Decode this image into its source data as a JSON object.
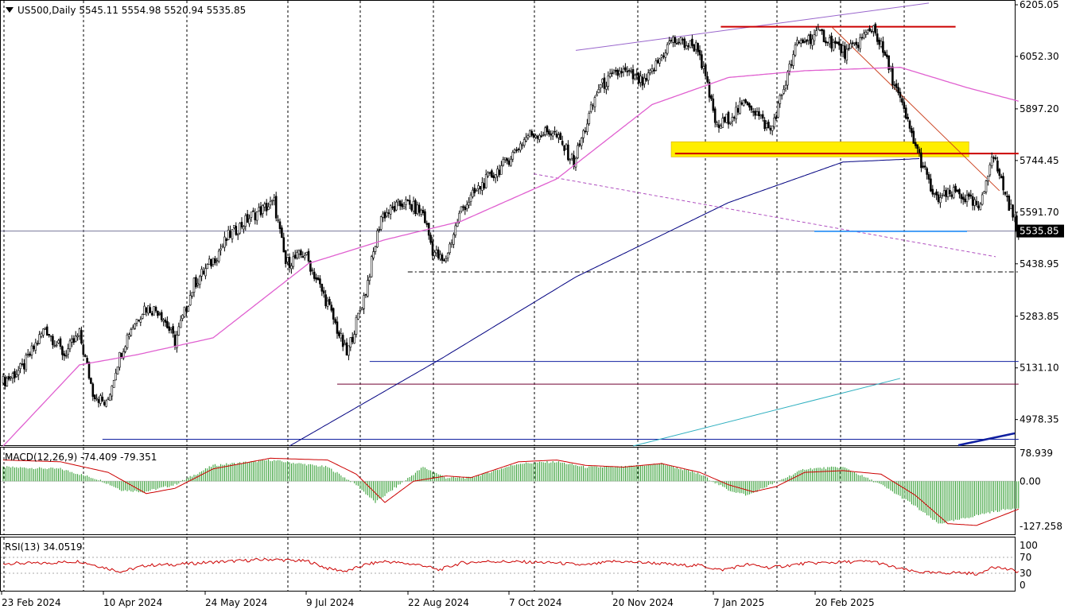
{
  "header": {
    "symbol": "US500,Daily",
    "ohlc": "5545.11 5554.98 5520.94 5535.85"
  },
  "colors": {
    "up_candle": "#000000",
    "down_candle": "#000000",
    "ma50": "#e060d0",
    "ma200": "#000080",
    "macd_hist": "#2a9a2a",
    "macd_signal": "#cc0000",
    "rsi_line": "#cc0000",
    "support_zone": "#ffee00",
    "resistance_line": "#cc0000",
    "channel_line": "#9966cc",
    "support_line": "#1e90ff"
  },
  "chart_data": [
    {
      "type": "candlestick",
      "title": "US500,Daily",
      "ylim": [
        4900,
        6205.05
      ],
      "y_ticks": [
        "6205.05",
        "6052.30",
        "5897.20",
        "5744.45",
        "5591.70",
        "5438.95",
        "5283.85",
        "5131.10",
        "4978.35"
      ],
      "current_price": "5535.85",
      "x_ticks": [
        "23 Feb 2024",
        "10 Apr 2024",
        "24 May 2024",
        "9 Jul 2024",
        "22 Aug 2024",
        "7 Oct 2024",
        "20 Nov 2024",
        "7 Jan 2025",
        "20 Feb 2025"
      ],
      "close_anchors": [
        [
          0,
          5090
        ],
        [
          10,
          5130
        ],
        [
          22,
          5250
        ],
        [
          32,
          5170
        ],
        [
          40,
          5230
        ],
        [
          47,
          5060
        ],
        [
          54,
          5020
        ],
        [
          60,
          5150
        ],
        [
          66,
          5240
        ],
        [
          74,
          5310
        ],
        [
          82,
          5300
        ],
        [
          90,
          5210
        ],
        [
          100,
          5380
        ],
        [
          110,
          5450
        ],
        [
          118,
          5520
        ],
        [
          130,
          5580
        ],
        [
          142,
          5620
        ],
        [
          148,
          5440
        ],
        [
          158,
          5470
        ],
        [
          170,
          5320
        ],
        [
          180,
          5170
        ],
        [
          190,
          5360
        ],
        [
          198,
          5580
        ],
        [
          210,
          5620
        ],
        [
          220,
          5590
        ],
        [
          225,
          5480
        ],
        [
          231,
          5440
        ],
        [
          240,
          5600
        ],
        [
          252,
          5680
        ],
        [
          262,
          5730
        ],
        [
          275,
          5820
        ],
        [
          288,
          5830
        ],
        [
          299,
          5740
        ],
        [
          312,
          5960
        ],
        [
          324,
          6010
        ],
        [
          336,
          5970
        ],
        [
          350,
          6100
        ],
        [
          364,
          6080
        ],
        [
          374,
          5840
        ],
        [
          390,
          5920
        ],
        [
          402,
          5830
        ],
        [
          416,
          6090
        ],
        [
          428,
          6120
        ],
        [
          442,
          6060
        ],
        [
          456,
          6140
        ],
        [
          464,
          6020
        ],
        [
          476,
          5820
        ],
        [
          488,
          5630
        ],
        [
          500,
          5650
        ],
        [
          512,
          5600
        ],
        [
          518,
          5770
        ],
        [
          526,
          5630
        ],
        [
          532,
          5536
        ]
      ],
      "ma50_anchors": [
        [
          0,
          4900
        ],
        [
          40,
          5140
        ],
        [
          70,
          5170
        ],
        [
          110,
          5220
        ],
        [
          160,
          5440
        ],
        [
          200,
          5510
        ],
        [
          240,
          5565
        ],
        [
          290,
          5690
        ],
        [
          340,
          5910
        ],
        [
          380,
          5990
        ],
        [
          420,
          6010
        ],
        [
          470,
          6020
        ],
        [
          505,
          5960
        ],
        [
          532,
          5920
        ]
      ],
      "ma200_anchors": [
        [
          150,
          4900
        ],
        [
          230,
          5160
        ],
        [
          300,
          5400
        ],
        [
          380,
          5620
        ],
        [
          440,
          5740
        ],
        [
          480,
          5750
        ]
      ],
      "lines": [
        {
          "name": "upper channel",
          "from": [
            300,
            6070
          ],
          "to": [
            485,
            6210
          ]
        },
        {
          "name": "resistance",
          "from": [
            376,
            6140
          ],
          "to": [
            499,
            6140
          ]
        },
        {
          "name": "downtrend",
          "from": [
            434,
            6140
          ],
          "to": [
            522,
            5655
          ]
        },
        {
          "name": "support zone",
          "from": [
            350,
            5755
          ],
          "to": [
            506,
            5800
          ]
        },
        {
          "name": "neckline",
          "from": [
            352,
            5765
          ],
          "to": [
            532,
            5765
          ]
        },
        {
          "name": "lower channel dashed",
          "from": [
            278,
            5705
          ],
          "to": [
            520,
            5460
          ]
        },
        {
          "name": "dash-dot level",
          "from": [
            212,
            5415
          ],
          "to": [
            532,
            5415
          ]
        },
        {
          "name": "blue support",
          "from": [
            425,
            5535
          ],
          "to": [
            505,
            5535
          ]
        },
        {
          "name": "level 5151",
          "from": [
            192,
            5150
          ],
          "to": [
            532,
            5150
          ]
        },
        {
          "name": "level 5083",
          "from": [
            175,
            5083
          ],
          "to": [
            532,
            5083
          ]
        },
        {
          "name": "level 4920",
          "from": [
            52,
            4920
          ],
          "to": [
            532,
            4920
          ]
        },
        {
          "name": "cyan trend",
          "from": [
            330,
            4900
          ],
          "to": [
            470,
            5100
          ]
        }
      ]
    },
    {
      "type": "bar",
      "title": "MACD(12,26,9) -74.409 -79.351",
      "ylim": [
        -150,
        95
      ],
      "y_ticks": [
        "78.939",
        "0.00",
        "-127.258"
      ],
      "hist_anchors": [
        [
          0,
          40
        ],
        [
          30,
          35
        ],
        [
          50,
          5
        ],
        [
          62,
          -25
        ],
        [
          74,
          -30
        ],
        [
          90,
          -10
        ],
        [
          110,
          45
        ],
        [
          140,
          60
        ],
        [
          170,
          40
        ],
        [
          185,
          -10
        ],
        [
          195,
          -60
        ],
        [
          205,
          -20
        ],
        [
          220,
          40
        ],
        [
          232,
          10
        ],
        [
          245,
          10
        ],
        [
          270,
          50
        ],
        [
          290,
          55
        ],
        [
          305,
          40
        ],
        [
          325,
          40
        ],
        [
          345,
          50
        ],
        [
          365,
          20
        ],
        [
          380,
          -25
        ],
        [
          390,
          -40
        ],
        [
          402,
          -10
        ],
        [
          420,
          35
        ],
        [
          440,
          40
        ],
        [
          460,
          -10
        ],
        [
          475,
          -60
        ],
        [
          490,
          -120
        ],
        [
          500,
          -110
        ],
        [
          515,
          -90
        ],
        [
          532,
          -74
        ]
      ],
      "signal_anchors": [
        [
          0,
          60
        ],
        [
          30,
          55
        ],
        [
          55,
          25
        ],
        [
          75,
          -35
        ],
        [
          90,
          -20
        ],
        [
          110,
          35
        ],
        [
          140,
          65
        ],
        [
          170,
          60
        ],
        [
          185,
          20
        ],
        [
          200,
          -60
        ],
        [
          215,
          0
        ],
        [
          232,
          15
        ],
        [
          245,
          10
        ],
        [
          270,
          55
        ],
        [
          290,
          60
        ],
        [
          305,
          45
        ],
        [
          325,
          40
        ],
        [
          345,
          50
        ],
        [
          365,
          25
        ],
        [
          380,
          -10
        ],
        [
          393,
          -30
        ],
        [
          405,
          -15
        ],
        [
          420,
          25
        ],
        [
          440,
          30
        ],
        [
          460,
          20
        ],
        [
          478,
          -40
        ],
        [
          495,
          -120
        ],
        [
          510,
          -125
        ],
        [
          532,
          -79
        ]
      ]
    },
    {
      "type": "line",
      "title": "RSI(13) 34.0519",
      "ylim": [
        0,
        100
      ],
      "y_ticks": [
        "100",
        "70",
        "30",
        "0"
      ],
      "anchors": [
        [
          0,
          55
        ],
        [
          20,
          55
        ],
        [
          40,
          60
        ],
        [
          55,
          42
        ],
        [
          62,
          34
        ],
        [
          75,
          50
        ],
        [
          90,
          52
        ],
        [
          110,
          58
        ],
        [
          140,
          65
        ],
        [
          160,
          60
        ],
        [
          170,
          42
        ],
        [
          180,
          35
        ],
        [
          190,
          52
        ],
        [
          200,
          60
        ],
        [
          220,
          50
        ],
        [
          228,
          38
        ],
        [
          240,
          56
        ],
        [
          255,
          60
        ],
        [
          275,
          58
        ],
        [
          290,
          56
        ],
        [
          305,
          50
        ],
        [
          320,
          60
        ],
        [
          340,
          56
        ],
        [
          355,
          50
        ],
        [
          365,
          50
        ],
        [
          376,
          38
        ],
        [
          390,
          52
        ],
        [
          402,
          44
        ],
        [
          420,
          55
        ],
        [
          440,
          58
        ],
        [
          456,
          60
        ],
        [
          464,
          48
        ],
        [
          476,
          35
        ],
        [
          488,
          30
        ],
        [
          500,
          32
        ],
        [
          512,
          28
        ],
        [
          518,
          48
        ],
        [
          526,
          40
        ],
        [
          532,
          34
        ]
      ]
    }
  ]
}
